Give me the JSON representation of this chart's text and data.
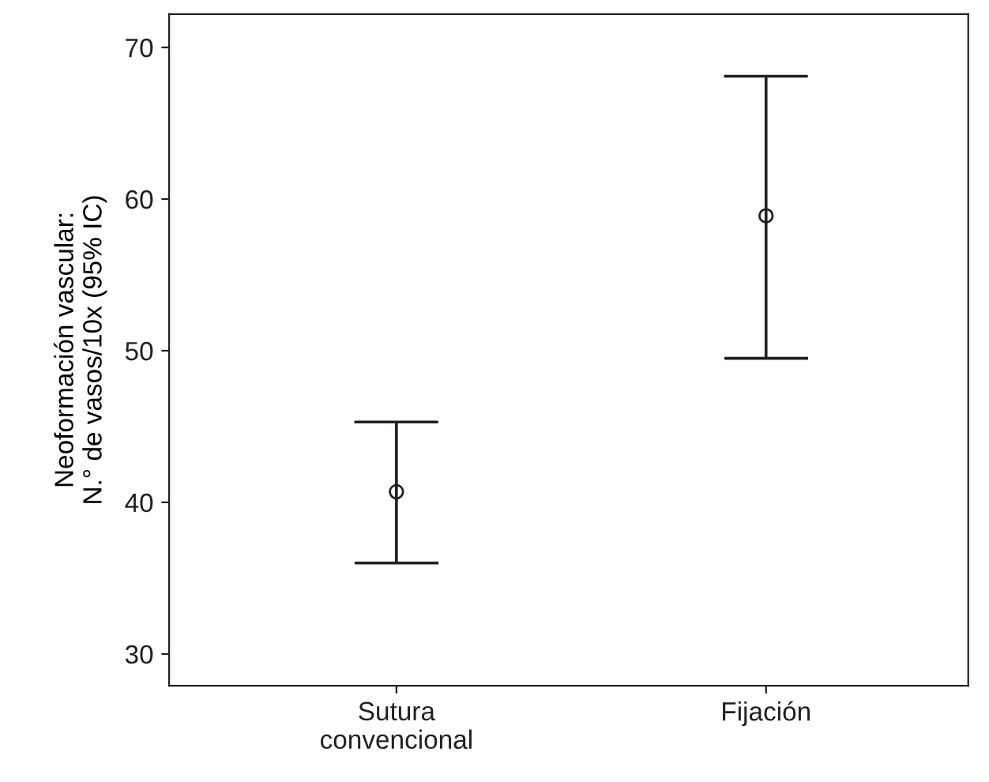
{
  "chart_data": {
    "type": "scatter",
    "ylabel": "Neoformación vascular:\nN.° de vasos/10x (95% IC)",
    "categories": [
      "Sutura\nconvencional",
      "Fijación"
    ],
    "values": [
      40.7,
      58.9
    ],
    "errors": [
      [
        36.0,
        45.3
      ],
      [
        49.5,
        68.1
      ]
    ],
    "color": "#231f20",
    "marker": "circle",
    "ylim": [
      27.9,
      72.2
    ],
    "yticks": [
      30,
      40,
      50,
      60,
      70
    ],
    "grid": false,
    "legend": false
  }
}
